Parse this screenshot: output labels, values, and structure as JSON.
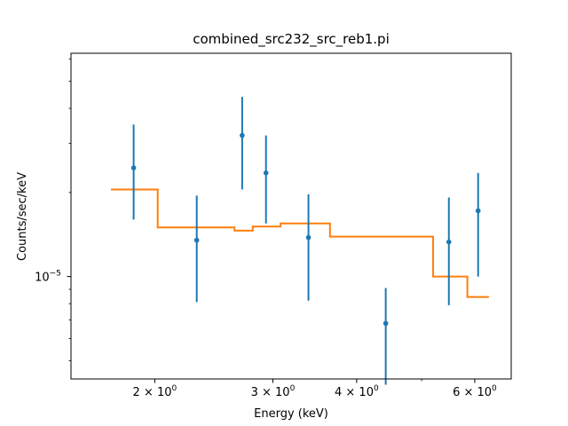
{
  "chart_data": {
    "type": "scatter",
    "title": "combined_src232_src_reb1.pi",
    "xlabel": "Energy (keV)",
    "ylabel": "Counts/sec/keV",
    "xscale": "log",
    "yscale": "log",
    "xlim": [
      1.5,
      6.8
    ],
    "ylim": [
      4.3e-06,
      6.3e-05
    ],
    "x_ticks": [
      {
        "value": 2,
        "label": "2 × 10^0"
      },
      {
        "value": 3,
        "label": "3 × 10^0"
      },
      {
        "value": 4,
        "label": "4 × 10^0"
      },
      {
        "value": 6,
        "label": "6 × 10^0"
      }
    ],
    "y_ticks": [
      {
        "value": 1e-05,
        "label": "10^−5"
      }
    ],
    "grid": false,
    "colors": {
      "data": "#1f77b4",
      "model": "#ff7f0e"
    },
    "series": [
      {
        "role": "data",
        "points": [
          {
            "x": 1.86,
            "y": 2.45e-05,
            "ylo": 1.6e-05,
            "yhi": 3.5e-05
          },
          {
            "x": 2.31,
            "y": 1.35e-05,
            "ylo": 8.1e-06,
            "yhi": 1.95e-05
          },
          {
            "x": 2.7,
            "y": 3.2e-05,
            "ylo": 2.05e-05,
            "yhi": 4.4e-05
          },
          {
            "x": 2.93,
            "y": 2.35e-05,
            "ylo": 1.55e-05,
            "yhi": 3.2e-05
          },
          {
            "x": 3.39,
            "y": 1.38e-05,
            "ylo": 8.2e-06,
            "yhi": 1.97e-05
          },
          {
            "x": 4.42,
            "y": 6.8e-06,
            "ylo": 4.1e-06,
            "yhi": 9.1e-06
          },
          {
            "x": 5.49,
            "y": 1.33e-05,
            "ylo": 7.9e-06,
            "yhi": 1.92e-05
          },
          {
            "x": 6.07,
            "y": 1.72e-05,
            "ylo": 1e-05,
            "yhi": 2.35e-05
          }
        ]
      },
      {
        "role": "model",
        "step_edges": [
          1.72,
          2.02,
          2.63,
          2.8,
          3.08,
          3.65,
          5.2,
          5.85,
          6.3
        ],
        "step_values": [
          2.05e-05,
          1.5e-05,
          1.46e-05,
          1.51e-05,
          1.55e-05,
          1.39e-05,
          1e-05,
          8.45e-06
        ]
      }
    ]
  }
}
